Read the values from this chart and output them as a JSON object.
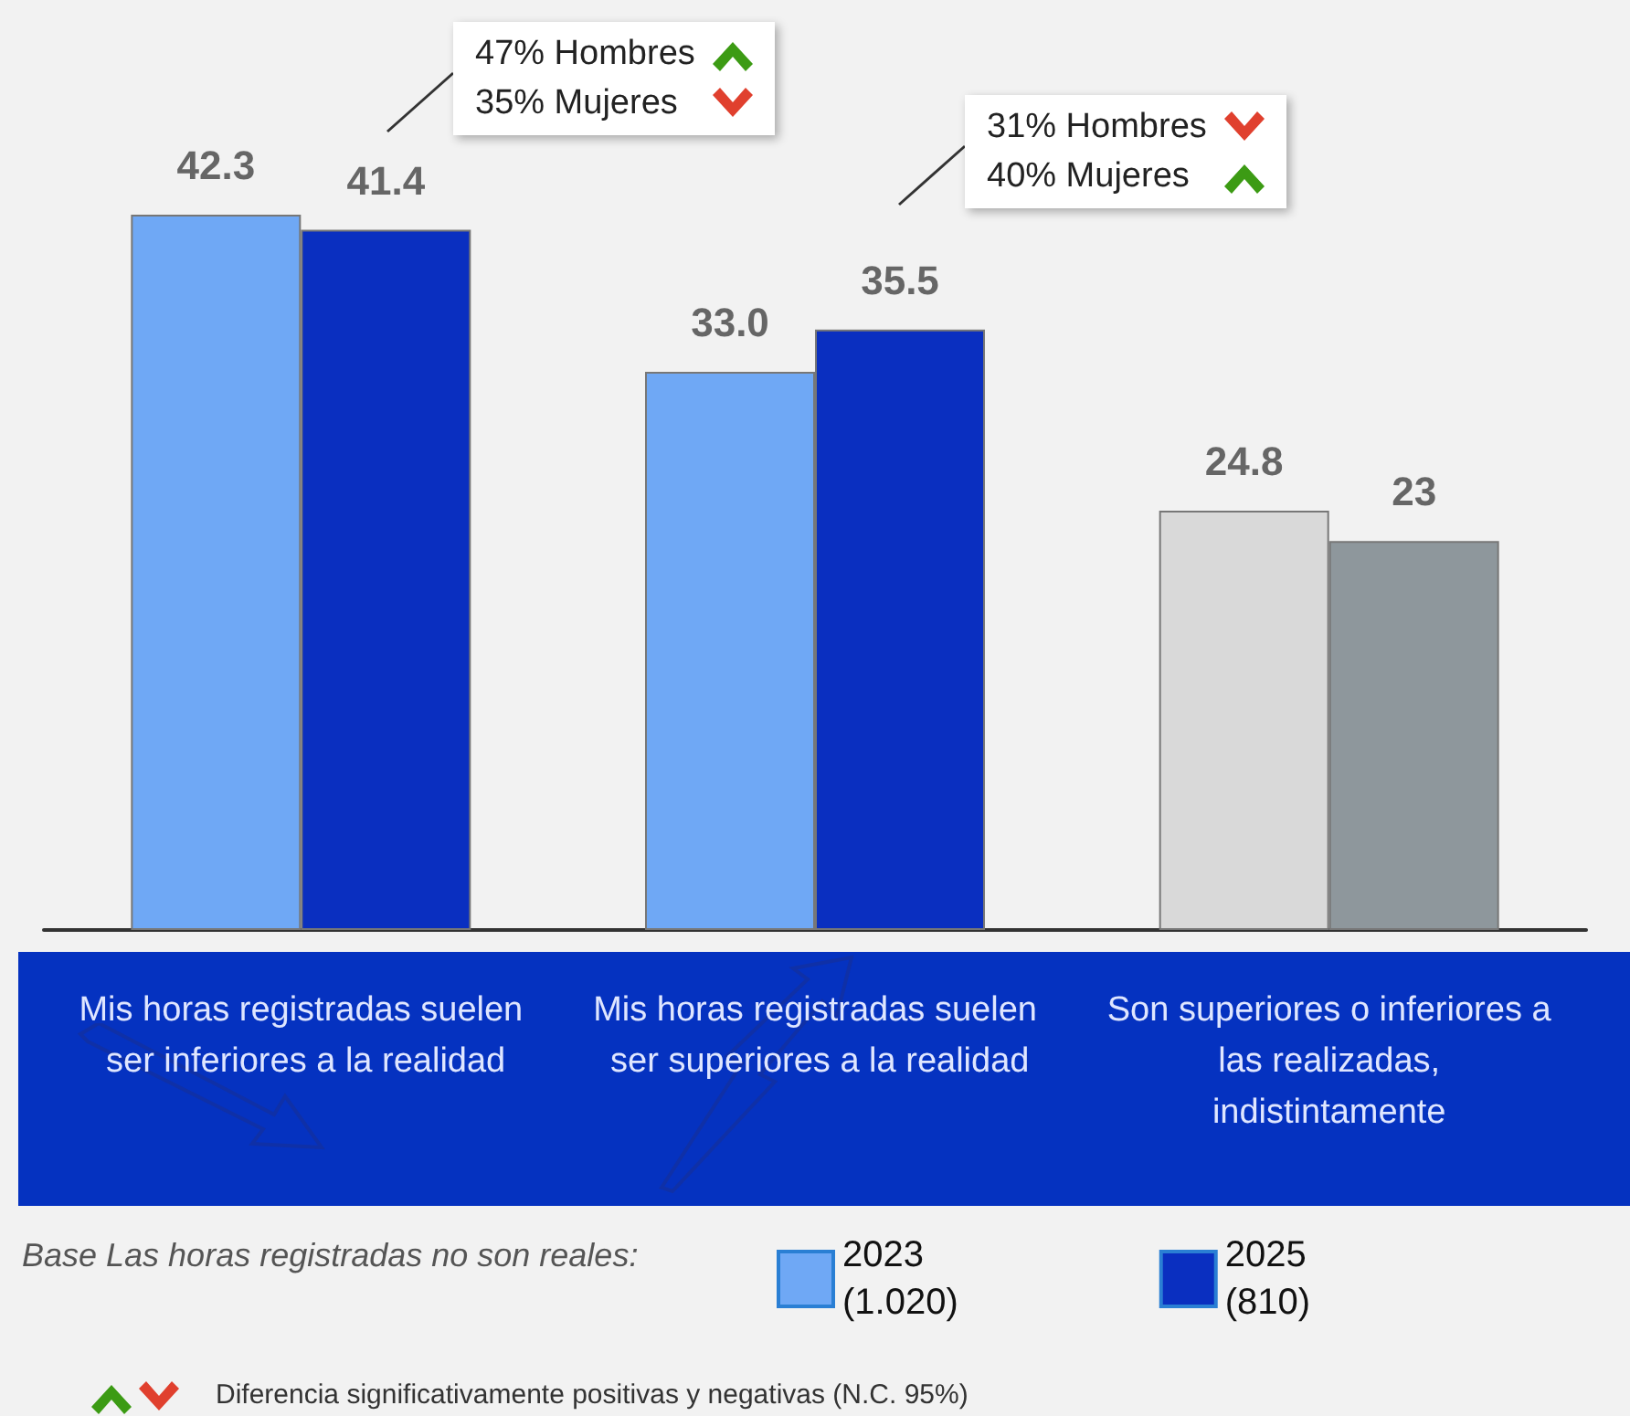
{
  "chart_data": {
    "type": "bar",
    "categories": [
      "Mis horas registradas suelen ser inferiores a la realidad",
      "Mis horas registradas suelen ser superiores a la realidad",
      "Son superiores o inferiores a las realizadas, indistintamente"
    ],
    "series": [
      {
        "name": "2023\n(1.020)",
        "color": "#6fa8f5",
        "colors": [
          "#6fa8f5",
          "#6fa8f5",
          "#d9d9d9"
        ],
        "values": [
          42.3,
          33.0,
          24.8
        ],
        "value_labels": [
          "42.3",
          "33.0",
          "24.8"
        ]
      },
      {
        "name": "2025\n(810)",
        "color": "#0a2fc0",
        "colors": [
          "#0a2fc0",
          "#0a2fc0",
          "#8e979c"
        ],
        "values": [
          41.4,
          35.5,
          23
        ],
        "value_labels": [
          "41.4",
          "35.5",
          "23"
        ]
      }
    ],
    "legend": "bottom",
    "legend_title": "Base Las horas registradas no son reales:",
    "annotations": [
      "47% Hombres",
      "35% Mujeres",
      "31% Hombres",
      "40% Mujeres",
      "Diferencia significativamente positivas y negativas (N.C. 95%)"
    ]
  }
}
